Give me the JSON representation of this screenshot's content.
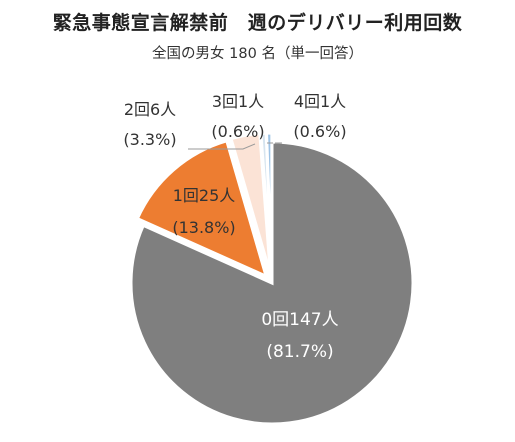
{
  "chart_data": {
    "type": "pie",
    "title": "緊急事態宣言解禁前　週のデリバリー利用回数",
    "subtitle": "全国の男女 180 名（単一回答）",
    "slices": [
      {
        "label": "0回147人",
        "pct_label": "(81.7%)",
        "value": 81.7,
        "count": 147,
        "color": "#7f7f7f"
      },
      {
        "label": "1回25人",
        "pct_label": "(13.8%)",
        "value": 13.8,
        "count": 25,
        "color": "#ed7d31"
      },
      {
        "label": "2回6人",
        "pct_label": "(3.3%)",
        "value": 3.3,
        "count": 6,
        "color": "#fbe3d6"
      },
      {
        "label": "3回1人",
        "pct_label": "(0.6%)",
        "value": 0.6,
        "count": 1,
        "color": "#d6e4ef"
      },
      {
        "label": "4回1人",
        "pct_label": "(0.6%)",
        "value": 0.6,
        "count": 1,
        "color": "#9dc3e6"
      }
    ]
  }
}
